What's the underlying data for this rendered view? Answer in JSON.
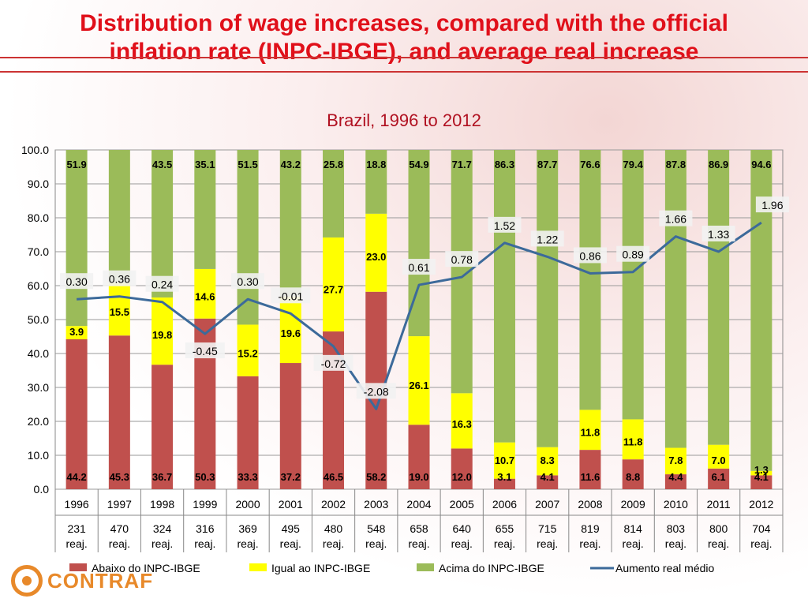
{
  "title_line1": "Distribution of wage increases, compared with the official",
  "title_line2": "inflation rate (INPC-IBGE), and average  real increase",
  "logo_text": "CONTRAF",
  "colors": {
    "below": "#c0504d",
    "equal": "#ffff00",
    "above": "#9bbb59",
    "line": "#3c6a9a"
  },
  "chart_data": {
    "type": "bar",
    "stacked": true,
    "title": "Brazil, 1996 to 2012",
    "ylim": [
      0,
      100
    ],
    "yticks": [
      "0.0",
      "10.0",
      "20.0",
      "30.0",
      "40.0",
      "50.0",
      "60.0",
      "70.0",
      "80.0",
      "90.0",
      "100.0"
    ],
    "categories": [
      "1996",
      "1997",
      "1998",
      "1999",
      "2000",
      "2001",
      "2002",
      "2003",
      "2004",
      "2005",
      "2006",
      "2007",
      "2008",
      "2009",
      "2010",
      "2011",
      "2012"
    ],
    "category_sublabels": [
      "231 reaj.",
      "470 reaj.",
      "324 reaj.",
      "316 reaj.",
      "369 reaj.",
      "495 reaj.",
      "480 reaj.",
      "548 reaj.",
      "658 reaj.",
      "640 reaj.",
      "655 reaj.",
      "715 reaj.",
      "819 reaj.",
      "814 reaj.",
      "803 reaj.",
      "800 reaj.",
      "704 reaj."
    ],
    "series": [
      {
        "name": "Abaixo do INPC-IBGE",
        "values": [
          44.2,
          45.3,
          36.7,
          50.3,
          33.3,
          37.2,
          46.5,
          58.2,
          19.0,
          12.0,
          3.1,
          4.1,
          11.6,
          8.8,
          4.4,
          6.1,
          4.1
        ],
        "labels": [
          "44.2",
          "45.3",
          "36.7",
          "50.3",
          "33.3",
          "37.2",
          "46.5",
          "58.2",
          "19.0",
          "12.0",
          "3.1",
          "4.1",
          "11.6",
          "8.8",
          "4.4",
          "6.1",
          "4.1"
        ]
      },
      {
        "name": "Igual ao INPC-IBGE",
        "values": [
          3.9,
          15.5,
          19.8,
          14.6,
          15.2,
          19.6,
          27.7,
          23.0,
          26.1,
          16.3,
          10.7,
          8.3,
          11.8,
          11.8,
          7.8,
          7.0,
          1.3
        ],
        "labels": [
          "3.9",
          "15.5",
          "19.8",
          "14.6",
          "15.2",
          "19.6",
          "27.7",
          "23.0",
          "26.1",
          "16.3",
          "10.7",
          "8.3",
          "11.8",
          "11.8",
          "7.8",
          "7.0",
          "1.3"
        ]
      },
      {
        "name": "Acima do INPC-IBGE",
        "values": [
          51.9,
          39.2,
          43.5,
          35.1,
          51.5,
          43.2,
          25.8,
          18.8,
          54.9,
          71.7,
          86.3,
          87.7,
          76.6,
          79.4,
          87.8,
          86.9,
          94.6
        ],
        "labels": [
          "51.9",
          "",
          "43.5",
          "35.1",
          "51.5",
          "43.2",
          "25.8",
          "18.8",
          "54.9",
          "71.7",
          "86.3",
          "87.7",
          "76.6",
          "79.4",
          "87.8",
          "86.9",
          "94.6"
        ]
      }
    ],
    "line_series": {
      "name": "Aumento real médio",
      "values": [
        0.3,
        0.36,
        0.24,
        -0.45,
        0.3,
        -0.01,
        -0.72,
        -2.08,
        0.61,
        0.78,
        1.52,
        1.22,
        0.86,
        0.89,
        1.66,
        1.33,
        1.96
      ],
      "labels": [
        "0.30",
        "0.36",
        "0.24",
        "-0.45",
        "0.30",
        "-0.01",
        "-0.72",
        "-2.08",
        "0.61",
        "0.78",
        "1.52",
        "1.22",
        "0.86",
        "0.89",
        "1.66",
        "1.33",
        "1.96"
      ]
    },
    "legend": [
      "Abaixo do INPC-IBGE",
      "Igual ao INPC-IBGE",
      "Acima do INPC-IBGE",
      "Aumento real médio"
    ],
    "legend_position": "bottom",
    "grid": true
  }
}
